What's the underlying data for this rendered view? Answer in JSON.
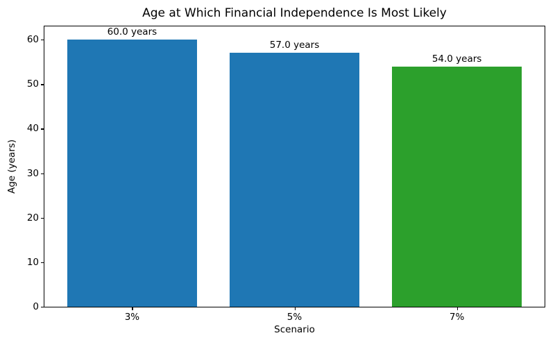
{
  "chart_data": {
    "type": "bar",
    "title": "Age at Which Financial Independence Is Most Likely",
    "xlabel": "Scenario",
    "ylabel": "Age (years)",
    "categories": [
      "3%",
      "5%",
      "7%"
    ],
    "values": [
      60.0,
      57.0,
      54.0
    ],
    "bar_labels": [
      "60.0 years",
      "57.0 years",
      "54.0 years"
    ],
    "colors": [
      "#1f77b4",
      "#1f77b4",
      "#2ca02c"
    ],
    "yticks": [
      0,
      10,
      20,
      30,
      40,
      50,
      60
    ],
    "ylim": [
      0,
      63
    ],
    "xlim": [
      -0.54,
      2.54
    ],
    "bar_width": 0.8,
    "grid": false,
    "legend_visible": false,
    "background_color": "#ffffff",
    "axis_color": "#000000"
  }
}
